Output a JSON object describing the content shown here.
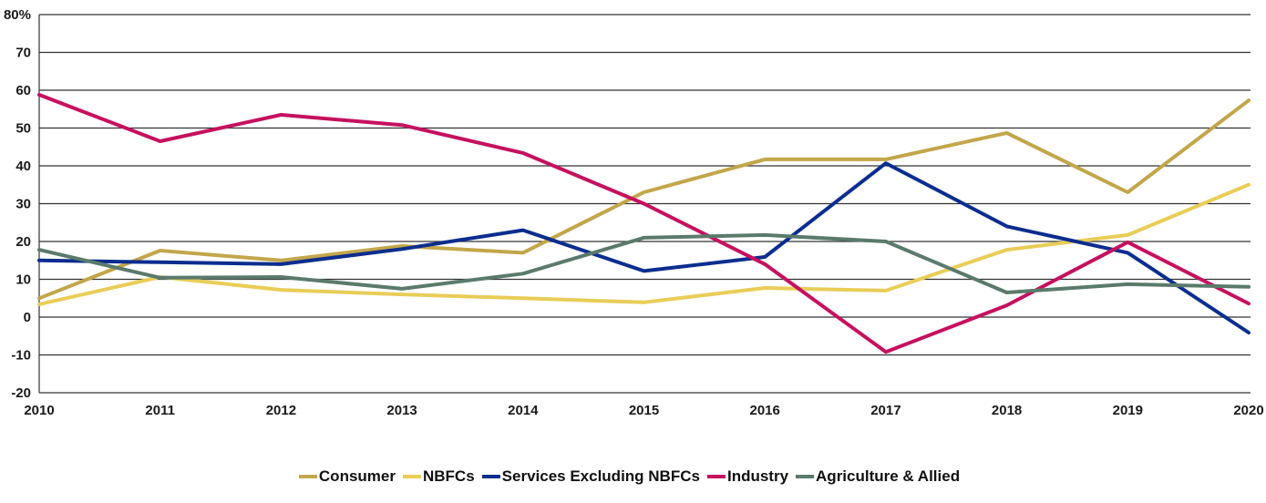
{
  "chart_data": {
    "type": "line",
    "title": "",
    "xlabel": "",
    "ylabel": "",
    "x": [
      "2010",
      "2011",
      "2012",
      "2013",
      "2014",
      "2015",
      "2016",
      "2017",
      "2018",
      "2019",
      "2020"
    ],
    "ylim": [
      -20,
      80
    ],
    "y_ticks": [
      -20,
      -10,
      0,
      10,
      20,
      30,
      40,
      50,
      60,
      70,
      80
    ],
    "y_tick_labels": [
      "-20",
      "-10",
      "0",
      "10",
      "20",
      "30",
      "40",
      "50",
      "60",
      "70",
      "80%"
    ],
    "grid": "horizontal",
    "legend_position": "bottom",
    "series": [
      {
        "name": "Consumer",
        "color": "#C2A64A",
        "values": [
          5,
          17.6,
          15,
          18.8,
          17,
          33,
          41.7,
          41.7,
          48.7,
          33,
          57.3
        ]
      },
      {
        "name": "NBFCs",
        "color": "#E9CD57",
        "values": [
          3.4,
          10.6,
          7.2,
          6,
          5,
          3.9,
          7.7,
          7,
          17.8,
          21.7,
          35
        ]
      },
      {
        "name": "Services Excluding NBFCs",
        "color": "#0B2D8E",
        "values": [
          15,
          14.5,
          14,
          18,
          23,
          12.2,
          15.9,
          40.7,
          24,
          17,
          -4.1
        ]
      },
      {
        "name": "Industry",
        "color": "#C5115F",
        "values": [
          58.8,
          46.5,
          53.5,
          50.8,
          43.4,
          30,
          14,
          -9.2,
          3.1,
          19.8,
          3.6
        ]
      },
      {
        "name": "Agriculture & Allied",
        "color": "#5A7A6C",
        "values": [
          17.8,
          10.4,
          10.6,
          7.5,
          11.5,
          21,
          21.7,
          20,
          6.5,
          8.7,
          8
        ]
      }
    ]
  }
}
